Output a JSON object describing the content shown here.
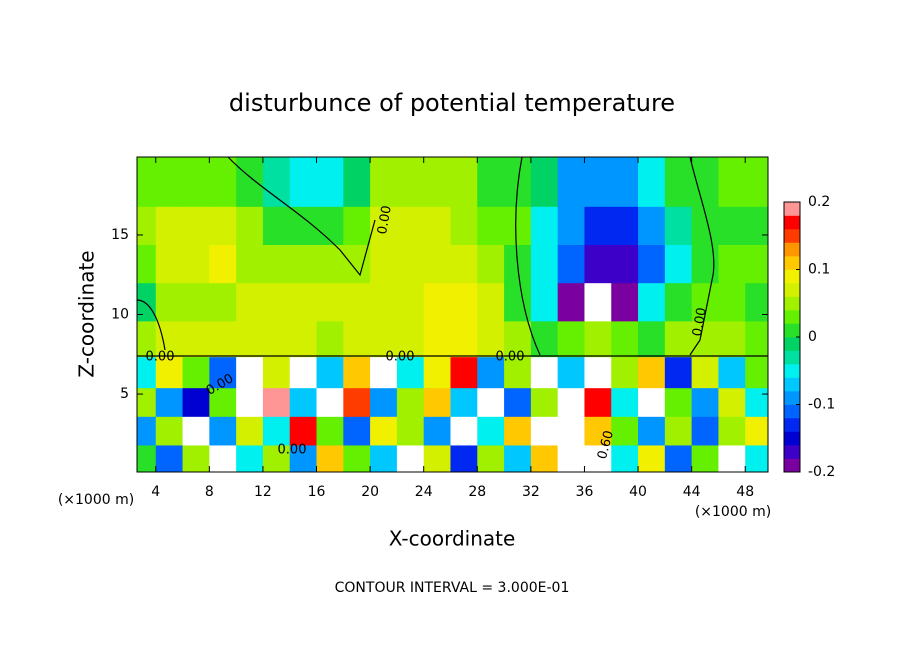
{
  "chart_data": {
    "type": "contour",
    "title": "disturbunce of potential temperature",
    "xlabel": "X-coordinate",
    "ylabel": "Z-coordinate",
    "x_unit_label": "(×1000 m)",
    "y_unit_label": "(×1000 m)",
    "footer": "CONTOUR INTERVAL = 3.000E-01",
    "xlim": [
      2.6,
      49.7
    ],
    "xticks": [
      4,
      8,
      12,
      16,
      20,
      24,
      28,
      32,
      36,
      40,
      44,
      48
    ],
    "ylim": [
      0.1,
      19.9
    ],
    "yticks": [
      5,
      10,
      15
    ],
    "zlim": [
      -0.2,
      0.2
    ],
    "zticks": [
      -0.2,
      -0.1,
      0,
      0.1,
      0.2
    ],
    "colors": [
      "#7b00a0",
      "#3c00c8",
      "#0000d2",
      "#0028f0",
      "#0064ff",
      "#0096ff",
      "#00c8ff",
      "#00f0f0",
      "#00e0a0",
      "#00d264",
      "#28e028",
      "#64f000",
      "#a0f000",
      "#d2f000",
      "#f0f000",
      "#ffc800",
      "#ff9600",
      "#ff3c00",
      "#ff0000",
      "#ff9696"
    ],
    "out_of_range_color": "#ffffff",
    "contour_labels": [
      "0.00",
      "0.00",
      "0.00",
      "0.00",
      "0.00",
      "0.00",
      "0.00",
      "0.60"
    ],
    "x": [
      3,
      5,
      7,
      9,
      11,
      13,
      15,
      17,
      19,
      21,
      23,
      25,
      27,
      29,
      31,
      33,
      35,
      37,
      39,
      41,
      43,
      45,
      47,
      49
    ],
    "y": [
      0.9,
      2.7,
      4.5,
      6.3,
      8.4,
      10.8,
      13.2,
      15.6,
      18
    ],
    "z": [
      [
        0.02,
        -0.12,
        0.05,
        0.25,
        -0.06,
        0.04,
        -0.1,
        0.12,
        0.03,
        -0.08,
        0.25,
        0.06,
        -0.14,
        0.04,
        -0.07,
        0.1,
        0.25,
        0.25,
        -0.05,
        0.08,
        -0.12,
        0.03,
        0.25,
        -0.06
      ],
      [
        -0.09,
        0.04,
        0.25,
        -0.1,
        0.06,
        -0.04,
        0.16,
        0.03,
        -0.12,
        0.08,
        0.04,
        -0.1,
        0.25,
        -0.06,
        0.12,
        0.25,
        0.25,
        0.1,
        0.03,
        -0.09,
        0.05,
        -0.12,
        0.04,
        0.08
      ],
      [
        0.05,
        -0.1,
        -0.16,
        0.03,
        0.25,
        0.18,
        -0.08,
        0.25,
        0.14,
        -0.1,
        0.05,
        0.12,
        -0.08,
        0.25,
        -0.12,
        0.04,
        0.25,
        0.16,
        -0.06,
        0.25,
        0.03,
        -0.1,
        0.06,
        -0.04
      ],
      [
        -0.06,
        0.08,
        0.03,
        -0.12,
        0.25,
        0.06,
        0.25,
        -0.08,
        0.12,
        0.25,
        -0.06,
        0.08,
        0.16,
        -0.1,
        0.05,
        0.25,
        -0.08,
        0.25,
        0.04,
        0.12,
        -0.14,
        0.06,
        -0.08,
        0.03
      ],
      [
        0.04,
        0.06,
        0.06,
        0.06,
        0.06,
        0.06,
        0.06,
        0.05,
        0.06,
        0.06,
        0.06,
        0.08,
        0.08,
        0.06,
        0.05,
        0.02,
        0.03,
        0.04,
        0.03,
        0.02,
        0.04,
        0.05,
        0.05,
        0.03
      ],
      [
        -0.01,
        0.05,
        0.05,
        0.05,
        0.06,
        0.06,
        0.06,
        0.06,
        0.07,
        0.07,
        0.07,
        0.09,
        0.09,
        0.06,
        0.02,
        -0.06,
        -0.19,
        -0.25,
        -0.19,
        -0.06,
        0.02,
        0.03,
        0.03,
        0.0
      ],
      [
        0.03,
        0.07,
        0.07,
        0.09,
        0.05,
        0.05,
        0.05,
        0.04,
        0.04,
        0.07,
        0.07,
        0.07,
        0.06,
        0.04,
        0.01,
        -0.05,
        -0.12,
        -0.17,
        -0.17,
        -0.12,
        -0.04,
        0.01,
        0.03,
        0.03
      ],
      [
        0.05,
        0.06,
        0.07,
        0.07,
        0.05,
        0.02,
        0.02,
        0.02,
        0.03,
        0.07,
        0.07,
        0.07,
        0.05,
        0.03,
        0.03,
        -0.04,
        -0.1,
        -0.14,
        -0.14,
        -0.09,
        -0.03,
        0.02,
        0.02,
        0.02
      ],
      [
        0.03,
        0.03,
        0.03,
        0.03,
        0.01,
        -0.03,
        -0.05,
        -0.05,
        -0.02,
        0.05,
        0.05,
        0.05,
        0.05,
        0.02,
        0.02,
        -0.02,
        -0.1,
        -0.1,
        -0.1,
        -0.05,
        0.0,
        0.0,
        0.03,
        0.03
      ]
    ]
  }
}
